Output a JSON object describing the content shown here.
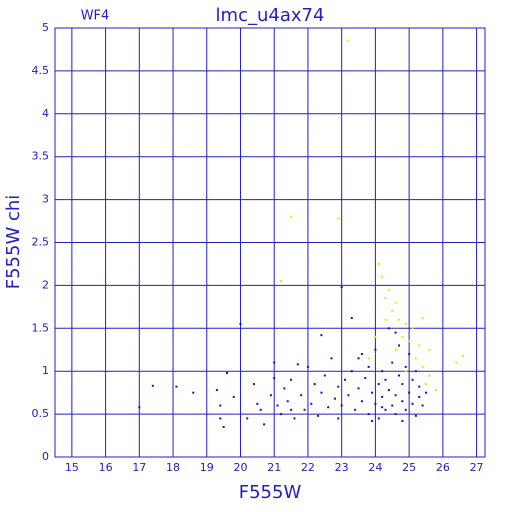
{
  "chart_data": {
    "type": "scatter",
    "title": "lmc_u4ax74",
    "subtitle": "WF4",
    "x_label": "F555W",
    "y_label": "F555W chi",
    "xlim": [
      14.5,
      27.25
    ],
    "ylim": [
      0,
      5
    ],
    "xticks": [
      15,
      16,
      17,
      18,
      19,
      20,
      21,
      22,
      23,
      24,
      25,
      26,
      27
    ],
    "yticks": [
      0,
      0.5,
      1,
      1.5,
      2,
      2.5,
      3,
      3.5,
      4,
      4.5,
      5
    ],
    "grid": true,
    "series": [
      {
        "color": "#1010d0",
        "x": [
          17.0,
          17.4,
          18.1,
          18.6,
          19.3,
          19.4,
          19.5,
          19.4,
          19.6,
          19.8,
          20.0,
          20.2,
          20.4,
          20.6,
          20.7,
          20.9,
          21.0,
          21.1,
          21.2,
          21.3,
          21.4,
          21.5,
          21.6,
          21.7,
          21.8,
          21.9,
          22.0,
          22.1,
          22.2,
          22.3,
          22.4,
          22.5,
          22.6,
          22.7,
          22.8,
          22.9,
          23.0,
          23.0,
          23.1,
          23.2,
          23.3,
          23.4,
          23.5,
          23.5,
          23.6,
          23.7,
          23.8,
          23.8,
          23.9,
          24.0,
          24.0,
          24.1,
          24.1,
          24.2,
          24.2,
          24.3,
          24.3,
          24.4,
          24.4,
          24.5,
          24.5,
          24.6,
          24.6,
          24.7,
          24.7,
          24.8,
          24.8,
          24.9,
          24.9,
          25.0,
          25.0,
          25.1,
          25.1,
          25.2,
          25.2,
          25.3,
          25.3,
          25.4,
          25.5,
          22.4,
          21.0,
          20.5,
          23.3,
          23.9,
          24.6,
          24.2,
          24.8,
          23.6,
          22.9,
          21.5
        ],
        "y": [
          0.58,
          0.83,
          0.82,
          0.75,
          0.78,
          0.6,
          0.35,
          0.45,
          0.98,
          0.7,
          1.55,
          0.45,
          0.85,
          0.55,
          0.38,
          0.72,
          1.1,
          0.6,
          0.5,
          0.8,
          0.65,
          0.9,
          0.45,
          1.08,
          0.72,
          0.55,
          1.05,
          0.62,
          0.85,
          0.48,
          0.75,
          0.95,
          0.58,
          1.15,
          0.68,
          0.82,
          1.98,
          0.6,
          0.9,
          0.72,
          1.0,
          0.55,
          0.8,
          1.15,
          0.65,
          0.92,
          0.5,
          1.05,
          0.75,
          0.62,
          1.25,
          0.85,
          0.45,
          0.7,
          1.0,
          0.55,
          0.9,
          1.5,
          0.78,
          0.6,
          1.1,
          0.72,
          0.5,
          0.95,
          1.3,
          0.65,
          0.85,
          0.55,
          1.05,
          0.75,
          1.2,
          0.62,
          0.9,
          0.48,
          1.0,
          0.7,
          0.82,
          0.6,
          0.75,
          1.42,
          0.92,
          0.62,
          1.62,
          0.42,
          1.45,
          0.58,
          0.42,
          1.2,
          0.45,
          0.55
        ]
      },
      {
        "color": "#f0e000",
        "x": [
          23.2,
          21.5,
          22.9,
          21.2,
          24.1,
          24.2,
          24.4,
          24.3,
          24.6,
          24.5,
          24.7,
          24.9,
          25.1,
          24.8,
          25.0,
          25.3,
          24.6,
          25.2,
          25.4,
          25.6,
          25.5,
          26.4,
          26.6,
          25.8,
          24.9,
          23.8,
          24.3,
          25.4,
          25.6,
          24.0
        ],
        "y": [
          4.85,
          2.8,
          2.78,
          2.05,
          2.25,
          2.1,
          1.95,
          1.85,
          1.8,
          1.7,
          1.6,
          1.55,
          1.5,
          1.4,
          1.35,
          1.3,
          1.25,
          1.15,
          1.05,
          0.95,
          0.85,
          1.1,
          1.18,
          0.78,
          1.0,
          1.15,
          1.6,
          1.62,
          1.25,
          1.4
        ]
      }
    ]
  }
}
